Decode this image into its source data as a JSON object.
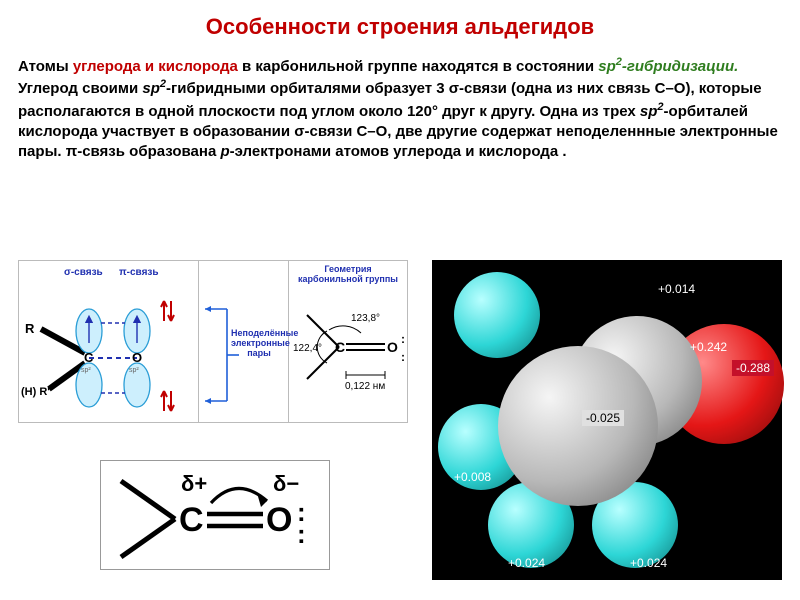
{
  "title": {
    "text": "Особенности строения альдегидов",
    "color": "#c00000"
  },
  "paragraph": {
    "l1a": "Атомы ",
    "l1b": "углерода и кислорода",
    "l1c": " в карбонильной группе находятся в состоянии ",
    "sp2_1": "sp",
    "sp2_1sup": "2",
    "l1d": "-гибридизации.",
    "l2a": " Углерод своими ",
    "sp2_2": "sp",
    "sp2_2sup": "2",
    "l2b": "-гибридными орбиталями образует 3 σ-связи (одна из них связь С–О), которые располагаются в одной плоскости под углом около 120° друг к другу. Одна из трех ",
    "sp2_3": "sp",
    "sp2_3sup": "2",
    "l2c": "-орбиталей кислорода участвует в образовании σ-связи С–О, две другие содержат неподеленнные электронные пары.    π-связь образована ",
    "ital_p": "р",
    "l2d": "-электронами атомов углерода и кислорода ."
  },
  "panel_left": {
    "sigma": "σ-связь",
    "pi": "π-связь",
    "R": "R",
    "HR": "(H) R'",
    "C": "C",
    "O": "O",
    "sp2": "sp²",
    "orbital_color": "#7dd6ff",
    "orbital_fill": "#cdeffd",
    "bond_color": "#1a1a1a"
  },
  "panel_mid": {
    "label": "Неподелённые\nэлектронные\nпары",
    "arrow_color": "#1f5fd8"
  },
  "panel_right": {
    "title": "Геометрия\nкарбонильной группы",
    "ang_top": "123,8°",
    "ang_bot": "122,4°",
    "len": "0,122 нм",
    "C": "C",
    "O": "O"
  },
  "delta": {
    "C": "C",
    "O": "O",
    "dplus": "δ+",
    "dminus": "δ−",
    "lone": ":"
  },
  "model": {
    "bg": "#000000",
    "charges": {
      "h_top": "+0.014",
      "c_right": "+0.242",
      "o": "-0.288",
      "c_left": "-0.025",
      "h_left": "+0.008",
      "h_bl": "+0.024",
      "h_br": "+0.024"
    }
  }
}
